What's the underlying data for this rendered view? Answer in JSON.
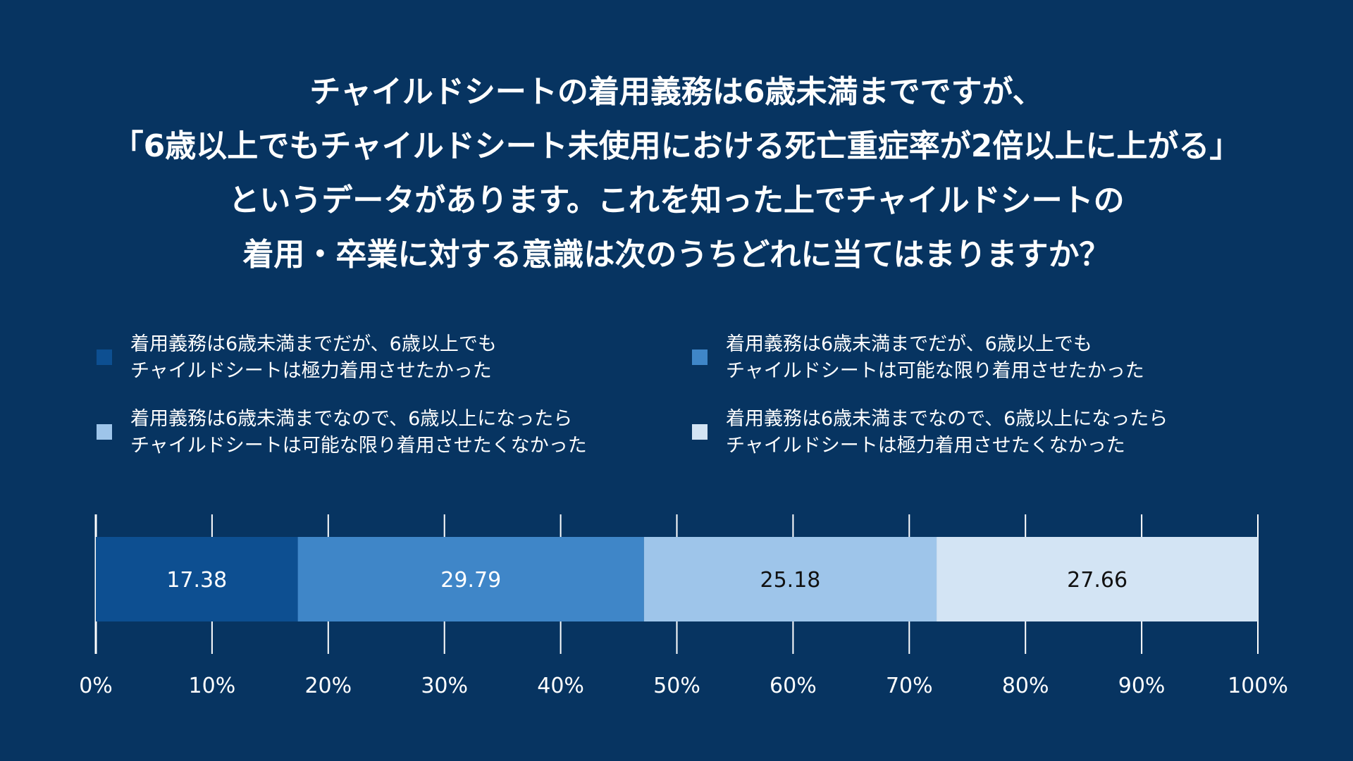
{
  "title": {
    "lines": [
      "チャイルドシートの着用義務は6歳未満までですが、",
      "「6歳以上でもチャイルドシート未使用における死亡重症率が2倍以上に上がる」",
      "というデータがあります。これを知った上でチャイルドシートの",
      "着用・卒業に対する意識は次のうちどれに当てはまりますか？"
    ]
  },
  "colors": {
    "background": "#073461",
    "series": [
      "#0d4f91",
      "#3f86c8",
      "#9ec5ea",
      "#d3e4f4"
    ],
    "label_text": [
      "#ffffff",
      "#ffffff",
      "#111111",
      "#111111"
    ]
  },
  "chart_data": {
    "type": "bar",
    "orientation": "horizontal-stacked-100",
    "series": [
      {
        "name": "着用義務は6歳未満までだが、6歳以上でもチャイルドシートは極力着用させたかった",
        "name_lines": [
          "着用義務は6歳未満までだが、6歳以上でも",
          "チャイルドシートは極力着用させたかった"
        ],
        "values": [
          17.38
        ]
      },
      {
        "name": "着用義務は6歳未満までだが、6歳以上でもチャイルドシートは可能な限り着用させたかった",
        "name_lines": [
          "着用義務は6歳未満までだが、6歳以上でも",
          "チャイルドシートは可能な限り着用させたかった"
        ],
        "values": [
          29.79
        ]
      },
      {
        "name": "着用義務は6歳未満までなので、6歳以上になったらチャイルドシートは可能な限り着用させたくなかった",
        "name_lines": [
          "着用義務は6歳未満までなので、6歳以上になったら",
          "チャイルドシートは可能な限り着用させたくなかった"
        ],
        "values": [
          25.18
        ]
      },
      {
        "name": "着用義務は6歳未満までなので、6歳以上になったらチャイルドシートは極力着用させたくなかった",
        "name_lines": [
          "着用義務は6歳未満までなので、6歳以上になったら",
          "チャイルドシートは極力着用させたくなかった"
        ],
        "values": [
          27.66
        ]
      }
    ],
    "data_labels": [
      "17.38",
      "29.79",
      "25.18",
      "27.66"
    ],
    "xlim": [
      0,
      100
    ],
    "x_ticks": [
      0,
      10,
      20,
      30,
      40,
      50,
      60,
      70,
      80,
      90,
      100
    ],
    "x_tick_labels": [
      "0%",
      "10%",
      "20%",
      "30%",
      "40%",
      "50%",
      "60%",
      "70%",
      "80%",
      "90%",
      "100%"
    ],
    "grid": true,
    "legend_position": "top"
  }
}
